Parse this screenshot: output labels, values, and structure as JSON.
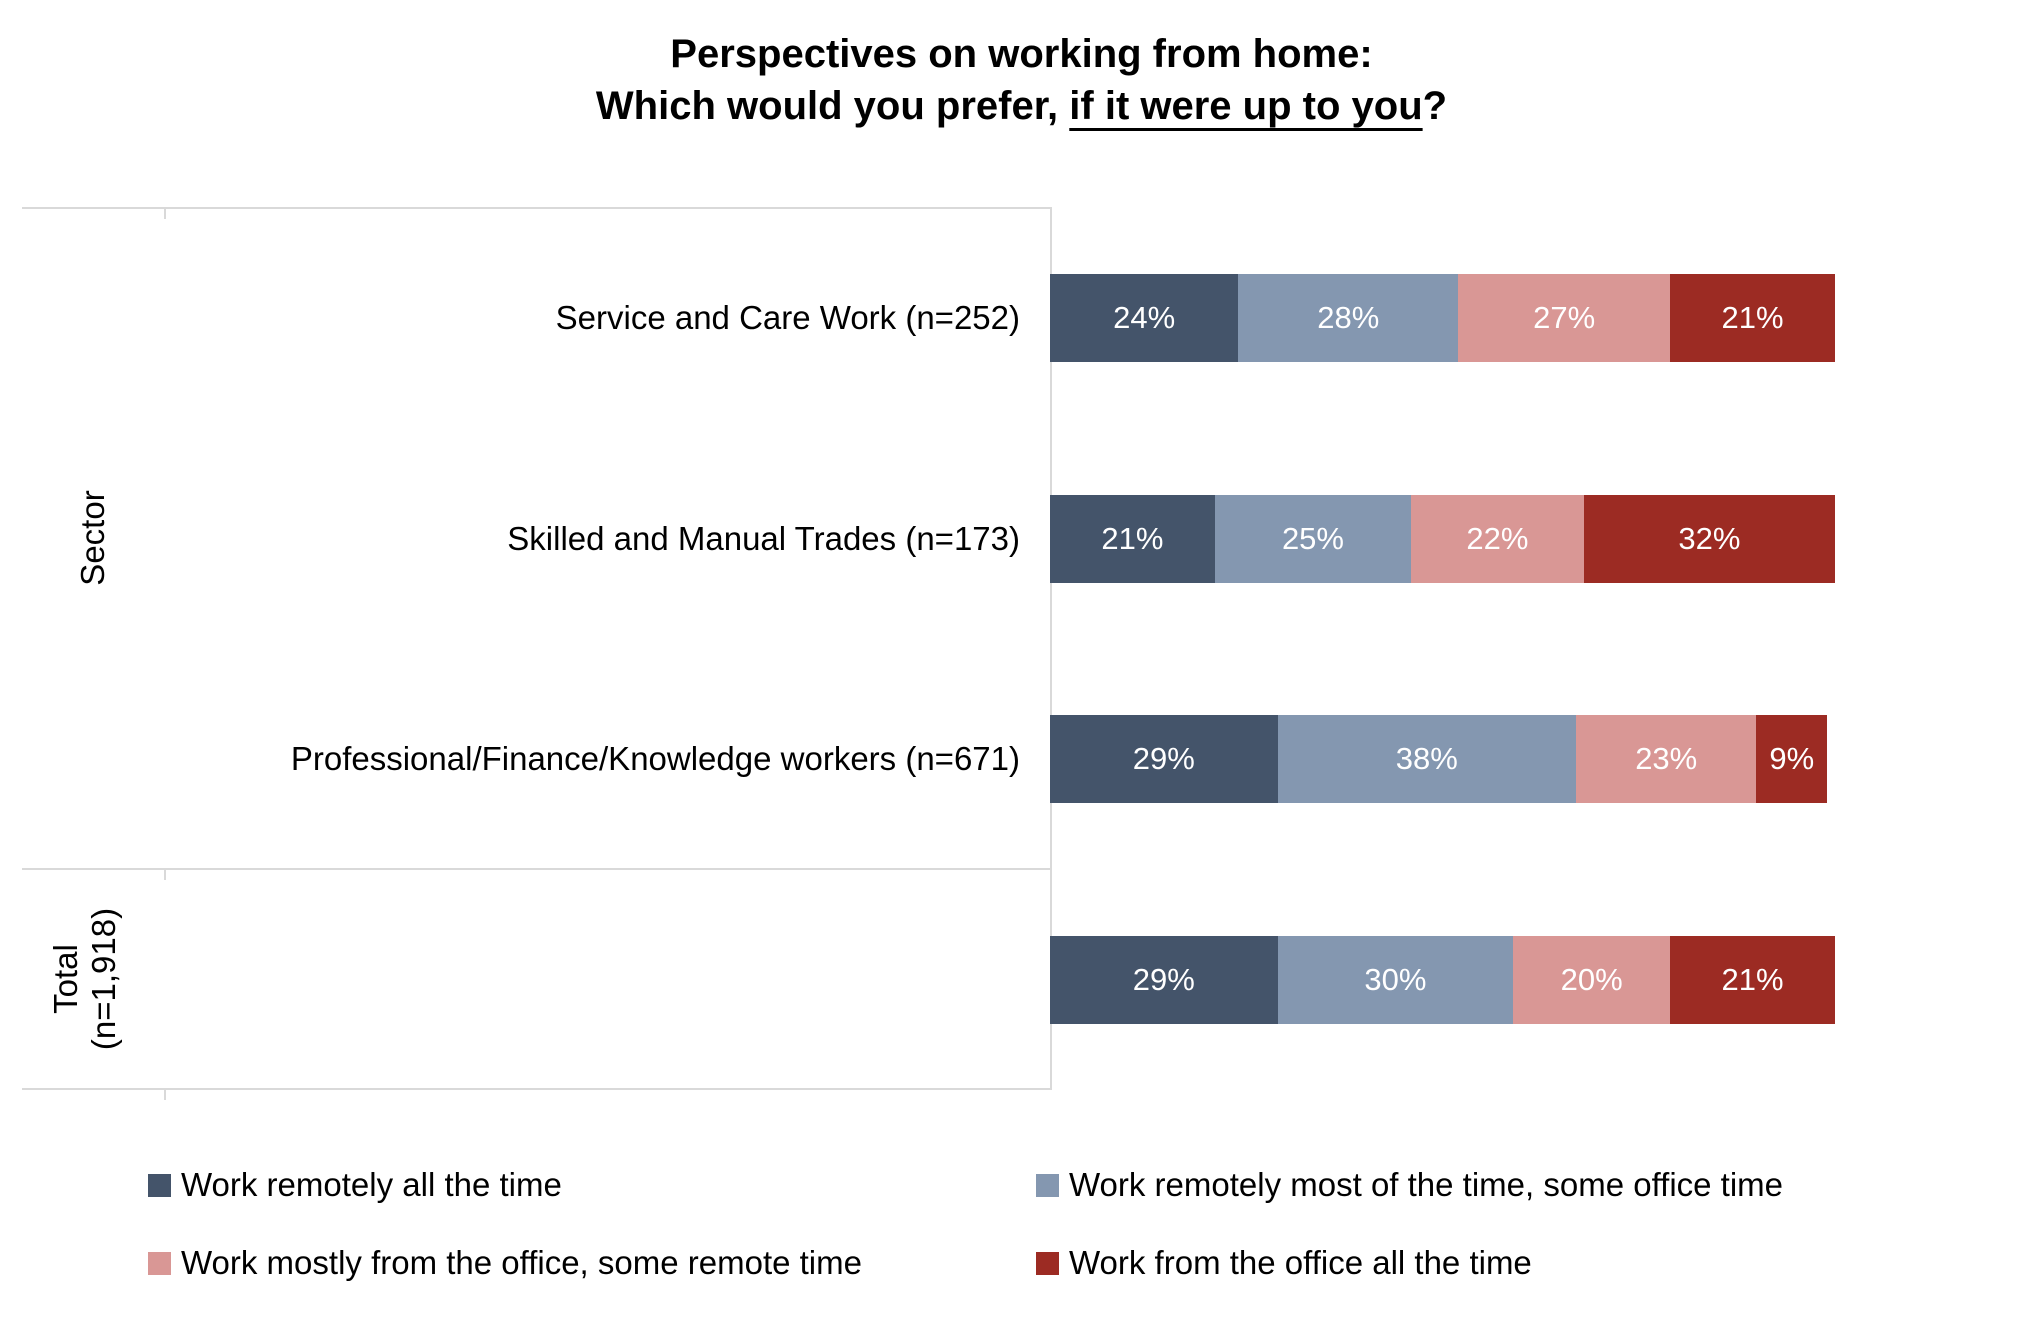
{
  "title": {
    "line1": "Perspectives on working from home:",
    "line2_prefix": "Which would you prefer, ",
    "line2_underline": "if it were up to you",
    "line2_suffix": "?"
  },
  "axis": {
    "sector_label": "Sector",
    "total_label_line1": "Total",
    "total_label_line2": "(n=1,918)"
  },
  "series_colors": [
    "#44546A",
    "#8497B0",
    "#D99795",
    "#9C2B23"
  ],
  "rows": [
    {
      "label": "Service and Care Work (n=252)",
      "values": [
        24,
        28,
        27,
        21
      ]
    },
    {
      "label": "Skilled and Manual Trades (n=173)",
      "values": [
        21,
        25,
        22,
        32
      ]
    },
    {
      "label": "Professional/Finance/Knowledge workers (n=671)",
      "values": [
        29,
        38,
        23,
        9
      ]
    },
    {
      "label": "",
      "values": [
        29,
        30,
        20,
        21
      ]
    }
  ],
  "legend": [
    {
      "label": "Work remotely all the time",
      "color": "#44546A"
    },
    {
      "label": "Work remotely most of the time, some office time",
      "color": "#8497B0"
    },
    {
      "label": "Work mostly from the office, some remote time",
      "color": "#D99795"
    },
    {
      "label": "Work from the office all the time",
      "color": "#9C2B23"
    }
  ],
  "chart_data": {
    "type": "bar",
    "orientation": "horizontal",
    "stacked": true,
    "unit": "percent",
    "title": "Perspectives on working from home: Which would you prefer, if it were up to you?",
    "categories": [
      "Service and Care Work (n=252)",
      "Skilled and Manual Trades (n=173)",
      "Professional/Finance/Knowledge workers (n=671)",
      "Total (n=1,918)"
    ],
    "category_groups": [
      {
        "label": "Sector",
        "categories": [
          "Service and Care Work (n=252)",
          "Skilled and Manual Trades (n=173)",
          "Professional/Finance/Knowledge workers (n=671)"
        ]
      },
      {
        "label": "Total (n=1,918)",
        "categories": [
          "Total (n=1,918)"
        ]
      }
    ],
    "series": [
      {
        "name": "Work remotely all the time",
        "color": "#44546A",
        "values": [
          24,
          21,
          29,
          29
        ]
      },
      {
        "name": "Work remotely most of the time, some office time",
        "color": "#8497B0",
        "values": [
          28,
          25,
          38,
          30
        ]
      },
      {
        "name": "Work mostly from the office, some remote time",
        "color": "#D99795",
        "values": [
          27,
          22,
          23,
          20
        ]
      },
      {
        "name": "Work from the office all the time",
        "color": "#9C2B23",
        "values": [
          21,
          32,
          9,
          21
        ]
      }
    ],
    "xlim": [
      0,
      100
    ],
    "value_labels": "inside segments, white text, percent",
    "legend_position": "bottom, two columns",
    "grid": "category boundary lines only, light gray"
  }
}
